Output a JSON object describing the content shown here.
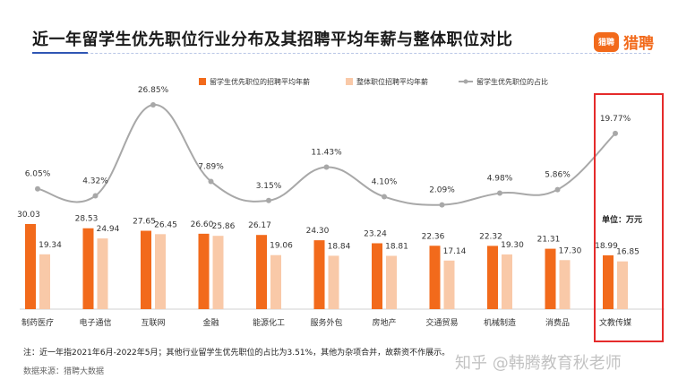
{
  "title": "近一年留学生优先职位行业分布及其招聘平均年薪与整体职位对比",
  "logo": {
    "mark": "猎聘",
    "text": "猎聘"
  },
  "unit_label": "单位：万元",
  "footnote": "注：近一年指2021年6月-2022年5月；其他行业留学生优先职位的占比为3.51%，其他为杂项合并，故薪资不作展示。",
  "source": "数据来源：猎聘大数据",
  "watermark": "知乎 @韩腾教育秋老师",
  "colors": {
    "primary": "#f26a1b",
    "secondary": "#f9c9a8",
    "line": "#a8a8a8",
    "highlight": "#e52b2b"
  },
  "chart_data": {
    "type": "bar",
    "categories": [
      "制药医疗",
      "电子通信",
      "互联网",
      "金融",
      "能源化工",
      "服务外包",
      "房地产",
      "交通贸易",
      "机械制造",
      "消费品",
      "文教传媒"
    ],
    "series": [
      {
        "name": "留学生优先职位的招聘平均年薪",
        "type": "bar",
        "color": "#f26a1b",
        "values": [
          30.03,
          28.53,
          27.65,
          26.6,
          26.17,
          24.3,
          23.24,
          22.36,
          22.32,
          21.31,
          18.99
        ],
        "labels": [
          "30.03",
          "28.53",
          "27.65",
          "26.60",
          "26.17",
          "24.30",
          "23.24",
          "22.36",
          "22.32",
          "21.31",
          "18.99"
        ]
      },
      {
        "name": "整体职位招聘平均年薪",
        "type": "bar",
        "color": "#f9c9a8",
        "values": [
          19.34,
          24.94,
          26.45,
          25.86,
          19.06,
          18.84,
          18.81,
          17.14,
          19.3,
          17.3,
          16.85
        ],
        "labels": [
          "19.34",
          "24.94",
          "26.45",
          "25.86",
          "19.06",
          "18.84",
          "18.81",
          "17.14",
          "19.30",
          "17.30",
          "16.85"
        ]
      },
      {
        "name": "留学生优先职位的占比",
        "type": "line",
        "color": "#a8a8a8",
        "values": [
          6.05,
          4.32,
          26.85,
          7.89,
          3.15,
          11.43,
          4.1,
          2.09,
          4.98,
          5.86,
          19.77
        ],
        "labels": [
          "6.05%",
          "4.32%",
          "26.85%",
          "7.89%",
          "3.15%",
          "11.43%",
          "4.10%",
          "2.09%",
          "4.98%",
          "5.86%",
          "19.77%"
        ]
      }
    ],
    "highlighted_category": "文教传媒",
    "legend_position": "top-right",
    "grid": false
  }
}
